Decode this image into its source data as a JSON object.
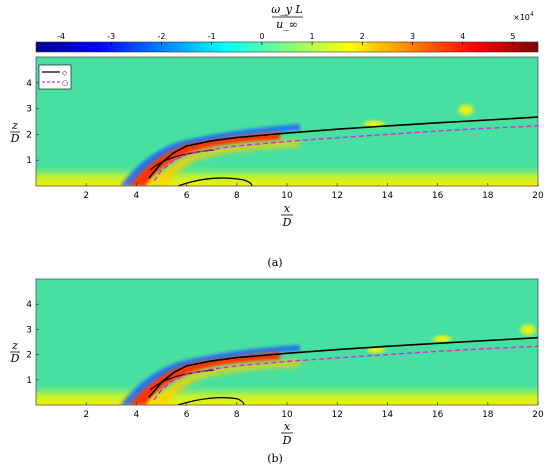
{
  "colorbar": {
    "label_numerator": "ω_y L",
    "label_denominator": "u_∞",
    "multiplier_base": "×10",
    "multiplier_exp": "4",
    "range": [
      -4.5,
      5.5
    ],
    "ticks": [
      "-4",
      "-3",
      "-2",
      "-1",
      "0",
      "1",
      "2",
      "3",
      "4",
      "5"
    ],
    "tick_values": [
      -4,
      -3,
      -2,
      -1,
      0,
      1,
      2,
      3,
      4,
      5
    ],
    "colormap": "jet"
  },
  "legend": {
    "placement": "top-left",
    "solid_marker": "◇",
    "dashed_marker": "○"
  },
  "axes": {
    "x_num": "x",
    "x_den": "D",
    "y_num": "z",
    "y_den": "D",
    "x_ticks": [
      "2",
      "4",
      "6",
      "8",
      "10",
      "12",
      "14",
      "16",
      "18",
      "20"
    ],
    "x_tick_values": [
      2,
      4,
      6,
      8,
      10,
      12,
      14,
      16,
      18,
      20
    ],
    "y_ticks": [
      "1",
      "2",
      "3",
      "4"
    ],
    "y_tick_values": [
      1,
      2,
      3,
      4
    ],
    "xlim": [
      0,
      20
    ],
    "ylim": [
      0,
      5
    ]
  },
  "chart_data": [
    {
      "type": "heatmap",
      "panel_label": "(a)",
      "xlabel": "x/D",
      "ylabel": "z/D",
      "xlim": [
        0,
        20
      ],
      "ylim": [
        0,
        5
      ],
      "background_value": 0.6,
      "series": [
        {
          "style": "solid-black",
          "x": [
            4.5,
            5,
            5.5,
            6,
            7,
            8,
            10,
            12,
            14,
            16,
            18,
            20
          ],
          "y": [
            0.3,
            0.9,
            1.3,
            1.55,
            1.75,
            1.88,
            2.05,
            2.2,
            2.33,
            2.45,
            2.56,
            2.67
          ]
        },
        {
          "style": "dashed-magenta",
          "x": [
            4.7,
            5,
            5.5,
            6,
            7,
            8,
            10,
            12,
            14,
            16,
            18,
            20
          ],
          "y": [
            0.2,
            0.6,
            1.0,
            1.22,
            1.42,
            1.55,
            1.73,
            1.87,
            2.0,
            2.13,
            2.24,
            2.33
          ]
        }
      ],
      "features": [
        {
          "kind": "shear-layer",
          "value": 5,
          "x": [
            4.4,
            6.8
          ],
          "z": [
            0.1,
            1.4
          ]
        },
        {
          "kind": "blob",
          "value": 2.5,
          "x": 17.1,
          "z": 2.95
        },
        {
          "kind": "blob",
          "value": 2.0,
          "x": 13.5,
          "z": 2.45
        },
        {
          "kind": "near-wall",
          "value": 2.2,
          "x": [
            0,
            20
          ],
          "z": [
            0,
            0.35
          ]
        }
      ]
    },
    {
      "type": "heatmap",
      "panel_label": "(b)",
      "xlabel": "x/D",
      "ylabel": "z/D",
      "xlim": [
        0,
        20
      ],
      "ylim": [
        0,
        5
      ],
      "background_value": 0.6,
      "series": [
        {
          "style": "solid-black",
          "x": [
            4.5,
            5,
            5.5,
            6,
            7,
            8,
            10,
            12,
            14,
            16,
            18,
            20
          ],
          "y": [
            0.3,
            0.9,
            1.3,
            1.55,
            1.75,
            1.88,
            2.05,
            2.2,
            2.33,
            2.45,
            2.56,
            2.67
          ]
        },
        {
          "style": "dashed-magenta",
          "x": [
            4.7,
            5,
            5.5,
            6,
            7,
            8,
            10,
            12,
            14,
            16,
            18,
            20
          ],
          "y": [
            0.2,
            0.6,
            1.0,
            1.22,
            1.42,
            1.55,
            1.73,
            1.87,
            2.0,
            2.13,
            2.24,
            2.33
          ]
        }
      ],
      "features": [
        {
          "kind": "shear-layer",
          "value": 5,
          "x": [
            4.4,
            6.8
          ],
          "z": [
            0.1,
            1.4
          ]
        },
        {
          "kind": "blob",
          "value": 2.0,
          "x": 16.2,
          "z": 2.55
        },
        {
          "kind": "blob",
          "value": 1.8,
          "x": 19.6,
          "z": 2.95
        },
        {
          "kind": "blob",
          "value": 1.5,
          "x": 13.5,
          "z": 2.3
        },
        {
          "kind": "near-wall",
          "value": 2.2,
          "x": [
            0,
            20
          ],
          "z": [
            0,
            0.35
          ]
        }
      ]
    }
  ]
}
